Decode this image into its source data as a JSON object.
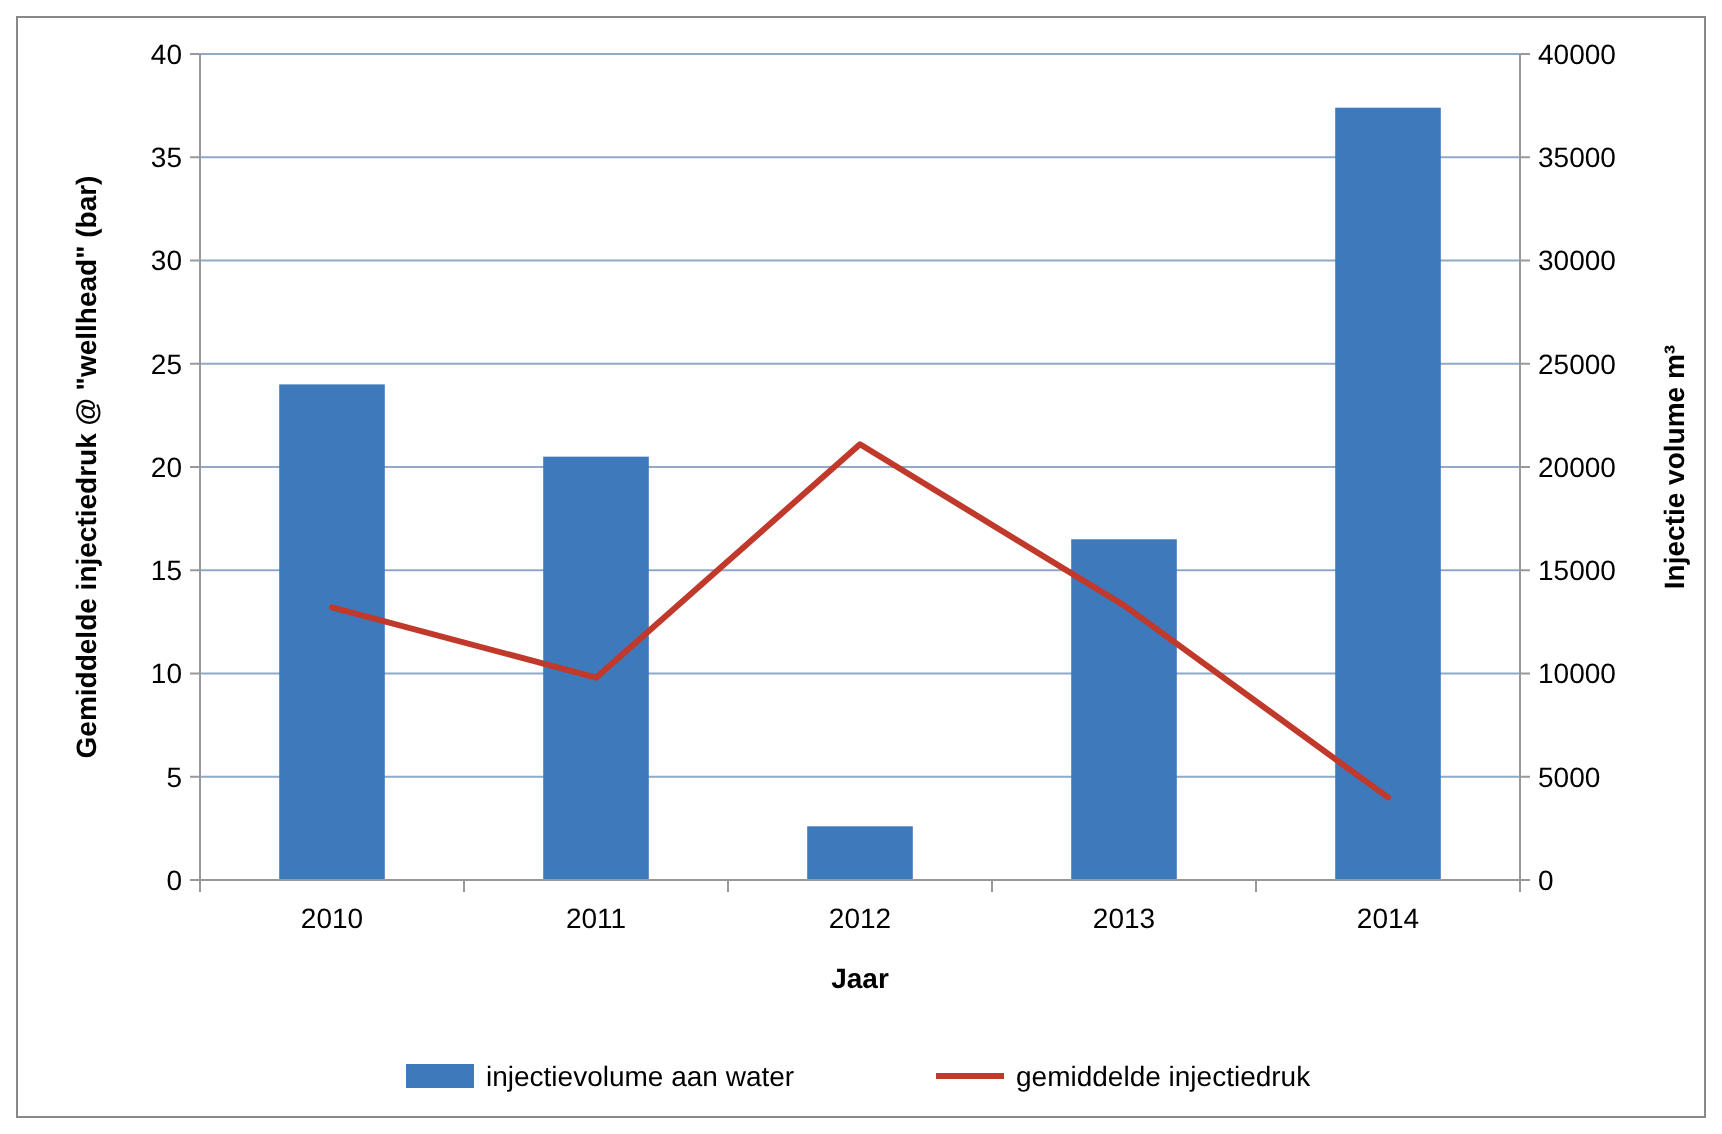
{
  "chart_data": {
    "type": "bar",
    "xlabel": "Jaar",
    "ylabel": "Gemiddelde injectiedruk @ \"wellhead\" (bar)",
    "y2label": "Injectie volume m³",
    "categories": [
      "2010",
      "2011",
      "2012",
      "2013",
      "2014"
    ],
    "series": [
      {
        "name": "injectievolume aan water",
        "axis": "y2",
        "color": "#3d79bb",
        "values": [
          24000,
          20500,
          2600,
          16500,
          37400
        ]
      },
      {
        "name": "gemiddelde injectiedruk",
        "type": "line",
        "color": "#c0392b",
        "values": [
          13.2,
          9.8,
          21.1,
          13.3,
          4.0
        ]
      }
    ],
    "ylim": [
      0,
      40
    ],
    "yticks": [
      0,
      5,
      10,
      15,
      20,
      25,
      30,
      35,
      40
    ],
    "y2lim": [
      0,
      40000
    ],
    "y2ticks": [
      0,
      5000,
      10000,
      15000,
      20000,
      25000,
      30000,
      35000,
      40000
    ],
    "grid": "y",
    "legend": "bottom",
    "marker": "none",
    "line_style": "solid"
  }
}
